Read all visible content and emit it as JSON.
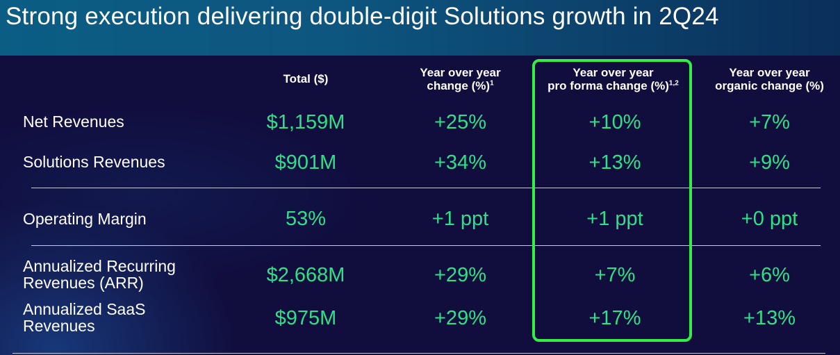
{
  "title": "Strong execution delivering double-digit Solutions growth in 2Q24",
  "colors": {
    "value_green": "#2ee086",
    "highlight_green": "#33ee44",
    "background": "#110d3d"
  },
  "headers": {
    "col1": "Total ($)",
    "col2_line1": "Year over year",
    "col2_line2": "change (%)",
    "col2_sup": "1",
    "col3_line1": "Year over year",
    "col3_line2": "pro forma change (%)",
    "col3_sup": "1,2",
    "col4_line1": "Year over year",
    "col4_line2": "organic change (%)"
  },
  "rows": [
    {
      "label_line1": "Net Revenues",
      "label_line2": "",
      "total": "$1,159M",
      "yoy": "+25%",
      "pro_forma": "+10%",
      "organic": "+7%"
    },
    {
      "label_line1": "Solutions Revenues",
      "label_line2": "",
      "total": "$901M",
      "yoy": "+34%",
      "pro_forma": "+13%",
      "organic": "+9%"
    },
    {
      "label_line1": "Operating Margin",
      "label_line2": "",
      "total": "53%",
      "yoy": "+1 ppt",
      "pro_forma": "+1 ppt",
      "organic": "+0 ppt"
    },
    {
      "label_line1": "Annualized Recurring",
      "label_line2": "Revenues (ARR)",
      "total": "$2,668M",
      "yoy": "+29%",
      "pro_forma": "+7%",
      "organic": "+6%"
    },
    {
      "label_line1": "Annualized SaaS",
      "label_line2": "Revenues",
      "total": "$975M",
      "yoy": "+29%",
      "pro_forma": "+17%",
      "organic": "+13%"
    }
  ]
}
